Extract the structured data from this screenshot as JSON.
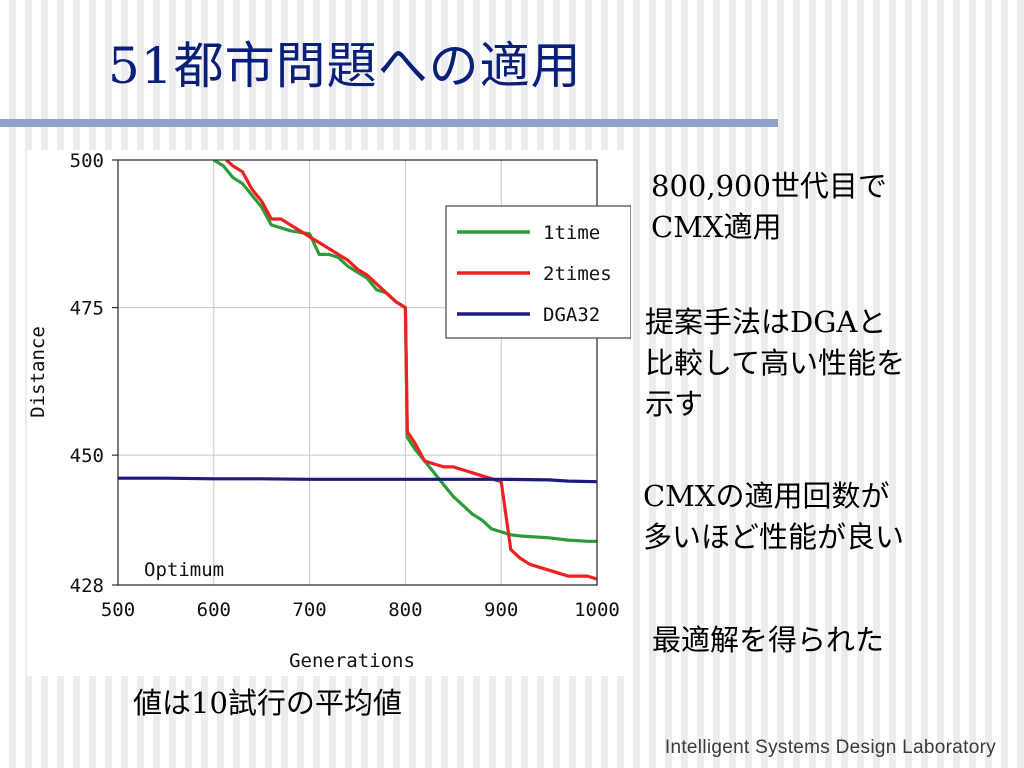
{
  "slide": {
    "title": "51都市問題への適用",
    "notes": [
      [
        "800,900世代目で",
        "CMX適用"
      ],
      [
        "提案手法はDGAと",
        "比較して高い性能を",
        "示す"
      ],
      [
        "CMXの適用回数が",
        "多いほど性能が良い"
      ],
      [
        "最適解を得られた"
      ]
    ],
    "caption": "値は10試行の平均値",
    "footer": "Intelligent Systems Design Laboratory"
  },
  "colors": {
    "title": "#0a1f7a",
    "rule": "#8fa3c9",
    "1time": "#2e9b3a",
    "2times": "#ee2020",
    "DGA32": "#1b1b80"
  },
  "chart_data": {
    "type": "line",
    "xlabel": "Generations",
    "ylabel": "Distance",
    "xlim": [
      500,
      1000
    ],
    "ylim": [
      428,
      500
    ],
    "xticks": [
      500,
      600,
      700,
      800,
      900,
      1000
    ],
    "yticks": [
      500,
      475,
      450,
      428
    ],
    "grid": true,
    "legend": "top-right",
    "annotation": "Optimum",
    "series": [
      {
        "name": "1time",
        "color": "#2e9b3a",
        "x": [
          600,
          610,
          620,
          630,
          640,
          650,
          660,
          680,
          700,
          710,
          720,
          730,
          740,
          750,
          760,
          770,
          780,
          790,
          800,
          802,
          810,
          820,
          830,
          840,
          850,
          860,
          870,
          880,
          890,
          900,
          910,
          920,
          930,
          940,
          950,
          960,
          970,
          980,
          990,
          1000
        ],
        "y": [
          500,
          499,
          497,
          496,
          494,
          492,
          489,
          488,
          487.5,
          484,
          484,
          483.5,
          482,
          481,
          480,
          478,
          477.5,
          476,
          475,
          453,
          451,
          449,
          447,
          445,
          443,
          441.5,
          440,
          439,
          437.5,
          437,
          436.5,
          436.3,
          436.2,
          436.1,
          436,
          435.8,
          435.6,
          435.5,
          435.4,
          435.4
        ]
      },
      {
        "name": "2times",
        "color": "#ee2020",
        "x": [
          613,
          620,
          630,
          640,
          650,
          660,
          670,
          680,
          690,
          700,
          710,
          720,
          730,
          740,
          750,
          760,
          770,
          780,
          790,
          800,
          802,
          810,
          820,
          830,
          840,
          850,
          860,
          870,
          880,
          890,
          900,
          910,
          920,
          930,
          940,
          950,
          960,
          970,
          980,
          990,
          1000
        ],
        "y": [
          500,
          499,
          498,
          495,
          493,
          490,
          490,
          489,
          488,
          487,
          486,
          485,
          484,
          483,
          481.5,
          480.5,
          479,
          477.5,
          476,
          475,
          454,
          452,
          449,
          448.5,
          448,
          448,
          447.5,
          447,
          446.5,
          446,
          445.5,
          434,
          432.5,
          431.5,
          431,
          430.5,
          430,
          429.5,
          429.5,
          429.5,
          429
        ]
      },
      {
        "name": "DGA32",
        "color": "#1b1b80",
        "x": [
          500,
          550,
          600,
          650,
          700,
          750,
          800,
          850,
          900,
          950,
          970,
          1000
        ],
        "y": [
          446.1,
          446.1,
          446.0,
          446.0,
          445.9,
          445.9,
          445.9,
          445.9,
          445.9,
          445.8,
          445.6,
          445.5
        ]
      }
    ]
  }
}
